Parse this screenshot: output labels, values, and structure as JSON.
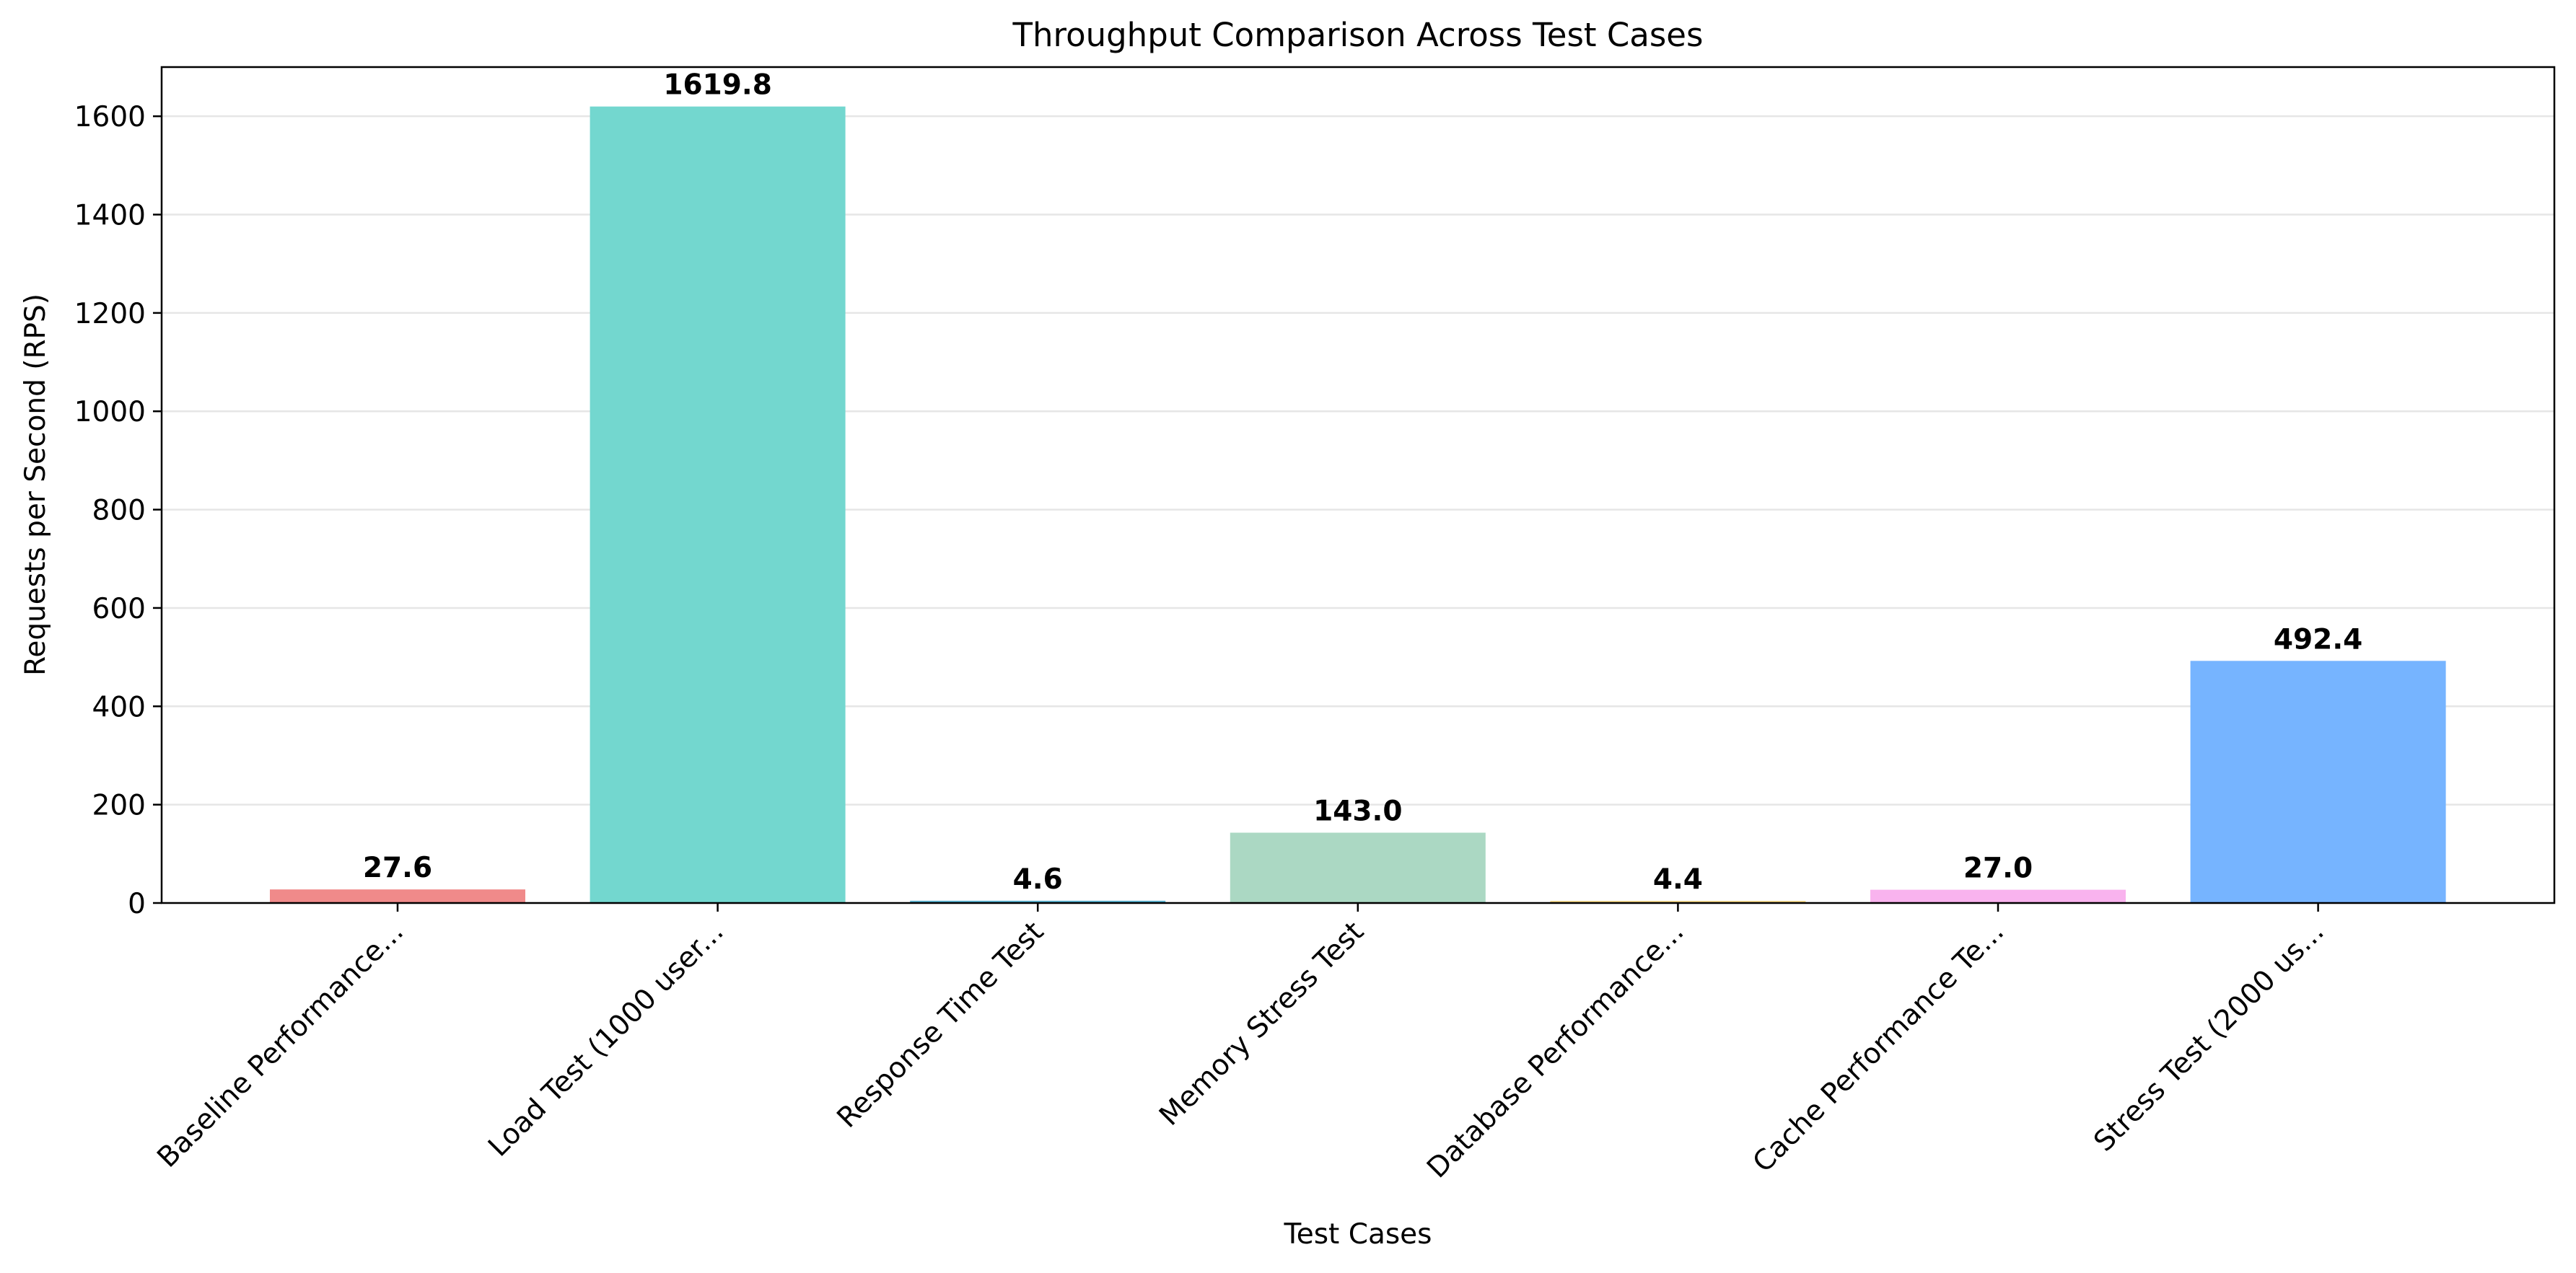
{
  "chart_data": {
    "type": "bar",
    "title": "Throughput Comparison Across Test Cases",
    "xlabel": "Test Cases",
    "ylabel": "Requests per Second (RPS)",
    "ylim": [
      0,
      1700
    ],
    "yticks": [
      0,
      200,
      400,
      600,
      800,
      1000,
      1200,
      1400,
      1600
    ],
    "grid": "y",
    "categories": [
      "Baseline Performance...",
      "Load Test (1000 user...",
      "Response Time Test",
      "Memory Stress Test",
      "Database Performance...",
      "Cache Performance Te...",
      "Stress Test (2000 us..."
    ],
    "values": [
      27.6,
      1619.8,
      4.6,
      143.0,
      4.4,
      27.0,
      492.4
    ],
    "value_labels": [
      "27.6",
      "1619.8",
      "4.6",
      "143.0",
      "4.4",
      "27.0",
      "492.4"
    ],
    "colors": [
      "#f08a8a",
      "#73d7cf",
      "#5ab4d2",
      "#abd8c3",
      "#f5d98b",
      "#f9b3ee",
      "#76b4ff"
    ]
  }
}
